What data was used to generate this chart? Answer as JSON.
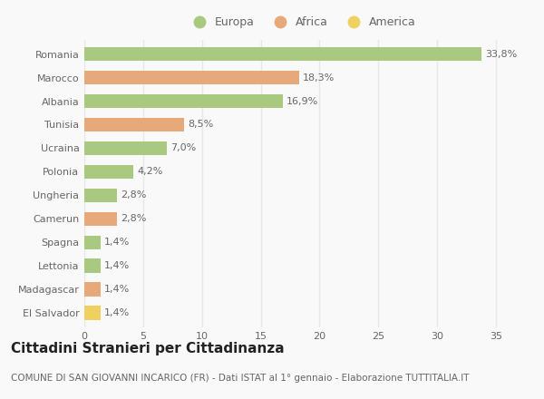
{
  "categories": [
    "Romania",
    "Marocco",
    "Albania",
    "Tunisia",
    "Ucraina",
    "Polonia",
    "Ungheria",
    "Camerun",
    "Spagna",
    "Lettonia",
    "Madagascar",
    "El Salvador"
  ],
  "values": [
    33.8,
    18.3,
    16.9,
    8.5,
    7.0,
    4.2,
    2.8,
    2.8,
    1.4,
    1.4,
    1.4,
    1.4
  ],
  "labels": [
    "33,8%",
    "18,3%",
    "16,9%",
    "8,5%",
    "7,0%",
    "4,2%",
    "2,8%",
    "2,8%",
    "1,4%",
    "1,4%",
    "1,4%",
    "1,4%"
  ],
  "continents": [
    "Europa",
    "Africa",
    "Europa",
    "Africa",
    "Europa",
    "Europa",
    "Europa",
    "Africa",
    "Europa",
    "Europa",
    "Africa",
    "America"
  ],
  "colors": {
    "Europa": "#a8c97f",
    "Africa": "#e8a97a",
    "America": "#f0d060"
  },
  "legend_order": [
    "Europa",
    "Africa",
    "America"
  ],
  "title": "Cittadini Stranieri per Cittadinanza",
  "subtitle": "COMUNE DI SAN GIOVANNI INCARICO (FR) - Dati ISTAT al 1° gennaio - Elaborazione TUTTITALIA.IT",
  "xlim": [
    0,
    37
  ],
  "xticks": [
    0,
    5,
    10,
    15,
    20,
    25,
    30,
    35
  ],
  "background_color": "#f9f9f9",
  "grid_color": "#e8e8e8",
  "bar_height": 0.6,
  "title_fontsize": 11,
  "subtitle_fontsize": 7.5,
  "label_fontsize": 8,
  "tick_fontsize": 8,
  "legend_fontsize": 9
}
